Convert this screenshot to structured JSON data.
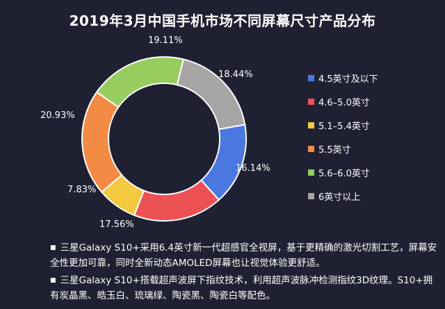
{
  "chart_data": {
    "type": "pie",
    "title": "2019年3月中国手机市场不同屏幕尺寸产品分布",
    "donut": true,
    "categories": [
      "4.5英寸及以下",
      "4.6–5.0英寸",
      "5.1–5.4英寸",
      "5.5英寸",
      "5.6–6.0英寸",
      "6英寸以上"
    ],
    "values": [
      16.14,
      17.56,
      7.83,
      20.93,
      19.11,
      18.44
    ],
    "value_labels": [
      "16.14%",
      "17.56%",
      "7.83%",
      "20.93%",
      "19.11%",
      "18.44%"
    ],
    "colors": [
      "#4a78e0",
      "#ec5154",
      "#f5c93f",
      "#f48b45",
      "#96cd5e",
      "#a7a5a4"
    ],
    "legend_position": "right"
  },
  "notes": [
    "三星Galaxy S10+采用6.4英寸新一代超感官全视屏，基于更精确的激光切割工艺，屏幕安全性更加可靠，同时全新动态AMOLED屏幕也让视觉体验更舒适。",
    "三星Galaxy S10+搭载超声波屏下指纹技术，利用超声波脉冲检测指纹3D纹理。S10+拥有炭晶黑、皓玉白、琉璃绿、陶瓷黑、陶瓷白等配色。"
  ],
  "bullet_symbol": "■"
}
